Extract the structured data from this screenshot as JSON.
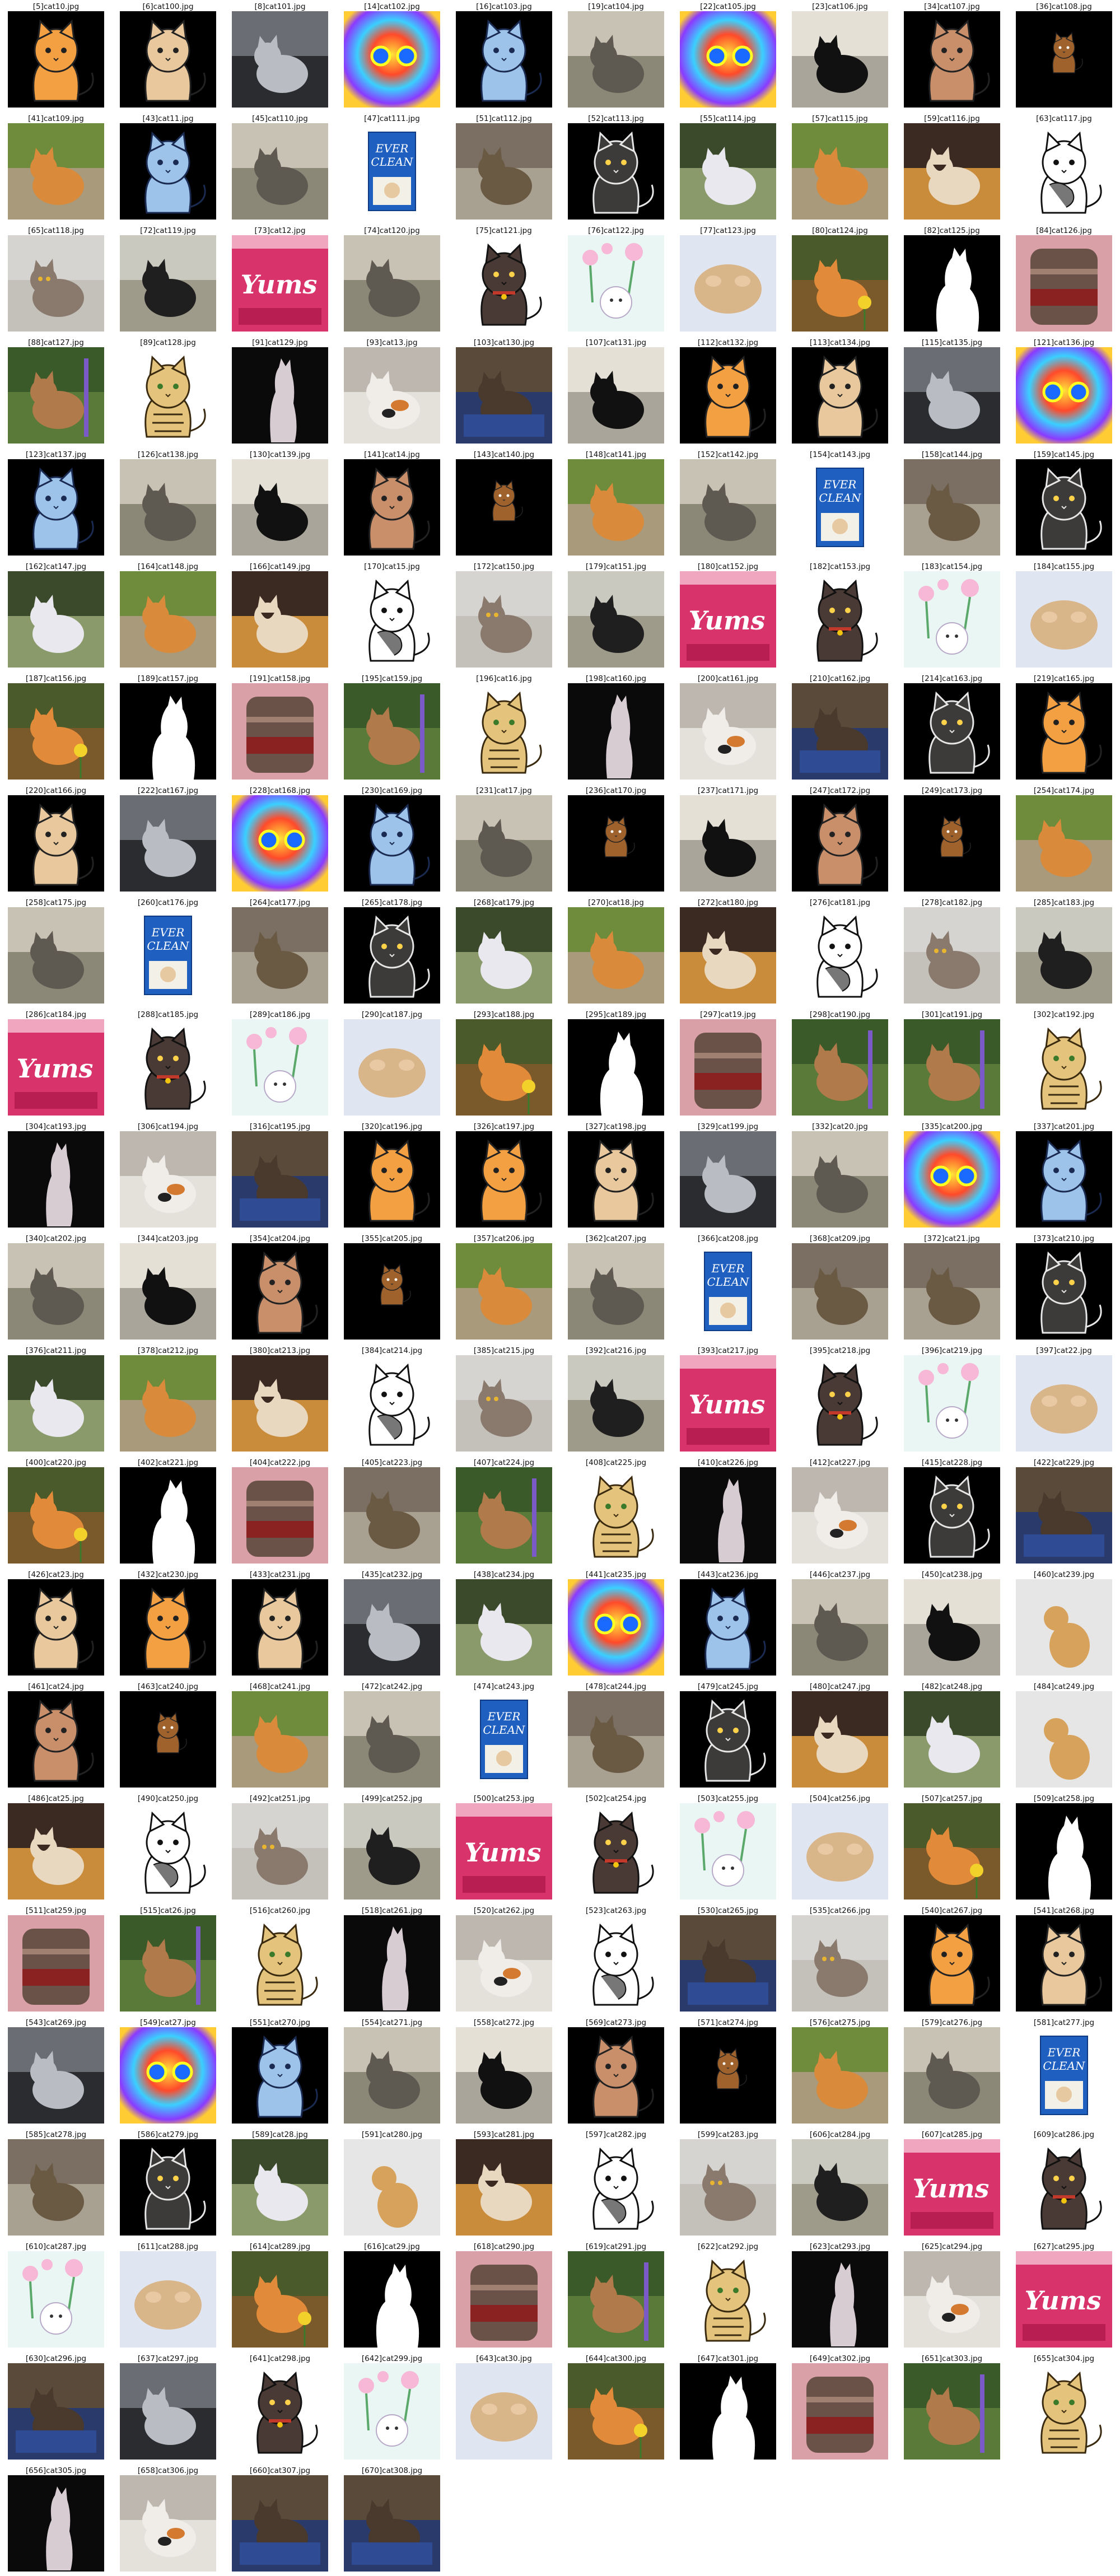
{
  "items": [
    {
      "label": "[5]cat10.jpg",
      "kind": "cart-orange"
    },
    {
      "label": "[6]cat100.jpg",
      "kind": "cart-tan"
    },
    {
      "label": "[8]cat101.jpg",
      "kind": "photo-grey"
    },
    {
      "label": "[14]cat102.jpg",
      "kind": "rainbow"
    },
    {
      "label": "[16]cat103.jpg",
      "kind": "cart-blue"
    },
    {
      "label": "[19]cat104.jpg",
      "kind": "photo-concrete"
    },
    {
      "label": "[22]cat105.jpg",
      "kind": "rainbow"
    },
    {
      "label": "[23]cat106.jpg",
      "kind": "photo-black"
    },
    {
      "label": "[34]cat107.jpg",
      "kind": "cart-brown"
    },
    {
      "label": "[36]cat108.jpg",
      "kind": "cart-small"
    },
    {
      "label": "[41]cat109.jpg",
      "kind": "photo-orange"
    },
    {
      "label": "[43]cat11.jpg",
      "kind": "cart-blue"
    },
    {
      "label": "[45]cat110.jpg",
      "kind": "photo-concrete"
    },
    {
      "label": "[47]cat111.jpg",
      "kind": "box"
    },
    {
      "label": "[51]cat112.jpg",
      "kind": "photo-tabby"
    },
    {
      "label": "[52]cat113.jpg",
      "kind": "cart-dark"
    },
    {
      "label": "[55]cat114.jpg",
      "kind": "photo-white"
    },
    {
      "label": "[57]cat115.jpg",
      "kind": "photo-orange"
    },
    {
      "label": "[59]cat116.jpg",
      "kind": "photo-siamese"
    },
    {
      "label": "[63]cat117.jpg",
      "kind": "sketch"
    },
    {
      "label": "[65]cat118.jpg",
      "kind": "photo-face"
    },
    {
      "label": "[72]cat119.jpg",
      "kind": "photo-outdoor"
    },
    {
      "label": "[73]cat12.jpg",
      "kind": "yums"
    },
    {
      "label": "[74]cat120.jpg",
      "kind": "photo-concrete"
    },
    {
      "label": "[75]cat121.jpg",
      "kind": "cart-dark-collar"
    },
    {
      "label": "[76]cat122.jpg",
      "kind": "floral"
    },
    {
      "label": "[77]cat123.jpg",
      "kind": "photo-paw"
    },
    {
      "label": "[80]cat124.jpg",
      "kind": "photo-flower"
    },
    {
      "label": "[82]cat125.jpg",
      "kind": "silhouette"
    },
    {
      "label": "[84]cat126.jpg",
      "kind": "photo-jar"
    },
    {
      "label": "[88]cat127.jpg",
      "kind": "photo-garden"
    },
    {
      "label": "[89]cat128.jpg",
      "kind": "cart-tiger"
    },
    {
      "label": "[91]cat129.jpg",
      "kind": "photo-standing"
    },
    {
      "label": "[93]cat13.jpg",
      "kind": "photo-calico"
    },
    {
      "label": "[103]cat130.jpg",
      "kind": "photo-box"
    },
    {
      "label": "[107]cat131.jpg",
      "kind": "photo-black"
    },
    {
      "label": "[112]cat132.jpg",
      "kind": "cart-orange"
    },
    {
      "label": "[113]cat134.jpg",
      "kind": "cart-tan"
    },
    {
      "label": "[115]cat135.jpg",
      "kind": "photo-grey"
    },
    {
      "label": "[121]cat136.jpg",
      "kind": "rainbow"
    },
    {
      "label": "[123]cat137.jpg",
      "kind": "cart-blue"
    },
    {
      "label": "[126]cat138.jpg",
      "kind": "photo-concrete"
    },
    {
      "label": "[130]cat139.jpg",
      "kind": "photo-black"
    },
    {
      "label": "[141]cat14.jpg",
      "kind": "cart-brown"
    },
    {
      "label": "[143]cat140.jpg",
      "kind": "cart-small"
    },
    {
      "label": "[148]cat141.jpg",
      "kind": "photo-orange"
    },
    {
      "label": "[152]cat142.jpg",
      "kind": "photo-concrete"
    },
    {
      "label": "[154]cat143.jpg",
      "kind": "box"
    },
    {
      "label": "[158]cat144.jpg",
      "kind": "photo-tabby"
    },
    {
      "label": "[159]cat145.jpg",
      "kind": "cart-dark"
    },
    {
      "label": "[162]cat147.jpg",
      "kind": "photo-white"
    },
    {
      "label": "[164]cat148.jpg",
      "kind": "photo-orange"
    },
    {
      "label": "[166]cat149.jpg",
      "kind": "photo-siamese"
    },
    {
      "label": "[170]cat15.jpg",
      "kind": "sketch"
    },
    {
      "label": "[172]cat150.jpg",
      "kind": "photo-face"
    },
    {
      "label": "[179]cat151.jpg",
      "kind": "photo-outdoor"
    },
    {
      "label": "[180]cat152.jpg",
      "kind": "yums"
    },
    {
      "label": "[182]cat153.jpg",
      "kind": "cart-dark-collar"
    },
    {
      "label": "[183]cat154.jpg",
      "kind": "floral"
    },
    {
      "label": "[184]cat155.jpg",
      "kind": "photo-paw"
    },
    {
      "label": "[187]cat156.jpg",
      "kind": "photo-flower"
    },
    {
      "label": "[189]cat157.jpg",
      "kind": "silhouette"
    },
    {
      "label": "[191]cat158.jpg",
      "kind": "photo-jar"
    },
    {
      "label": "[195]cat159.jpg",
      "kind": "photo-garden"
    },
    {
      "label": "[196]cat16.jpg",
      "kind": "cart-tiger"
    },
    {
      "label": "[198]cat160.jpg",
      "kind": "photo-standing"
    },
    {
      "label": "[200]cat161.jpg",
      "kind": "photo-calico"
    },
    {
      "label": "[210]cat162.jpg",
      "kind": "photo-box"
    },
    {
      "label": "[214]cat163.jpg",
      "kind": "cart-dark"
    },
    {
      "label": "[219]cat165.jpg",
      "kind": "cart-orange"
    },
    {
      "label": "[220]cat166.jpg",
      "kind": "cart-tan"
    },
    {
      "label": "[222]cat167.jpg",
      "kind": "photo-grey"
    },
    {
      "label": "[228]cat168.jpg",
      "kind": "rainbow"
    },
    {
      "label": "[230]cat169.jpg",
      "kind": "cart-blue"
    },
    {
      "label": "[231]cat17.jpg",
      "kind": "photo-concrete"
    },
    {
      "label": "[236]cat170.jpg",
      "kind": "cart-small"
    },
    {
      "label": "[237]cat171.jpg",
      "kind": "photo-black"
    },
    {
      "label": "[247]cat172.jpg",
      "kind": "cart-brown"
    },
    {
      "label": "[249]cat173.jpg",
      "kind": "cart-small"
    },
    {
      "label": "[254]cat174.jpg",
      "kind": "photo-orange"
    },
    {
      "label": "[258]cat175.jpg",
      "kind": "photo-concrete"
    },
    {
      "label": "[260]cat176.jpg",
      "kind": "box"
    },
    {
      "label": "[264]cat177.jpg",
      "kind": "photo-tabby"
    },
    {
      "label": "[265]cat178.jpg",
      "kind": "cart-dark"
    },
    {
      "label": "[268]cat179.jpg",
      "kind": "photo-white"
    },
    {
      "label": "[270]cat18.jpg",
      "kind": "photo-orange"
    },
    {
      "label": "[272]cat180.jpg",
      "kind": "photo-siamese"
    },
    {
      "label": "[276]cat181.jpg",
      "kind": "sketch"
    },
    {
      "label": "[278]cat182.jpg",
      "kind": "photo-face"
    },
    {
      "label": "[285]cat183.jpg",
      "kind": "photo-outdoor"
    },
    {
      "label": "[286]cat184.jpg",
      "kind": "yums"
    },
    {
      "label": "[288]cat185.jpg",
      "kind": "cart-dark-collar"
    },
    {
      "label": "[289]cat186.jpg",
      "kind": "floral"
    },
    {
      "label": "[290]cat187.jpg",
      "kind": "photo-paw"
    },
    {
      "label": "[293]cat188.jpg",
      "kind": "photo-flower"
    },
    {
      "label": "[295]cat189.jpg",
      "kind": "silhouette"
    },
    {
      "label": "[297]cat19.jpg",
      "kind": "photo-jar"
    },
    {
      "label": "[298]cat190.jpg",
      "kind": "photo-garden"
    },
    {
      "label": "[301]cat191.jpg",
      "kind": "photo-garden"
    },
    {
      "label": "[302]cat192.jpg",
      "kind": "cart-tiger"
    },
    {
      "label": "[304]cat193.jpg",
      "kind": "photo-standing"
    },
    {
      "label": "[306]cat194.jpg",
      "kind": "photo-calico"
    },
    {
      "label": "[316]cat195.jpg",
      "kind": "photo-box"
    },
    {
      "label": "[320]cat196.jpg",
      "kind": "cart-orange"
    },
    {
      "label": "[326]cat197.jpg",
      "kind": "cart-orange"
    },
    {
      "label": "[327]cat198.jpg",
      "kind": "cart-tan"
    },
    {
      "label": "[329]cat199.jpg",
      "kind": "photo-grey"
    },
    {
      "label": "[332]cat20.jpg",
      "kind": "photo-concrete"
    },
    {
      "label": "[335]cat200.jpg",
      "kind": "rainbow"
    },
    {
      "label": "[337]cat201.jpg",
      "kind": "cart-blue"
    },
    {
      "label": "[340]cat202.jpg",
      "kind": "photo-concrete"
    },
    {
      "label": "[344]cat203.jpg",
      "kind": "photo-black"
    },
    {
      "label": "[354]cat204.jpg",
      "kind": "cart-brown"
    },
    {
      "label": "[355]cat205.jpg",
      "kind": "cart-small"
    },
    {
      "label": "[357]cat206.jpg",
      "kind": "photo-orange"
    },
    {
      "label": "[362]cat207.jpg",
      "kind": "photo-concrete"
    },
    {
      "label": "[366]cat208.jpg",
      "kind": "box"
    },
    {
      "label": "[368]cat209.jpg",
      "kind": "photo-tabby"
    },
    {
      "label": "[372]cat21.jpg",
      "kind": "photo-tabby"
    },
    {
      "label": "[373]cat210.jpg",
      "kind": "cart-dark"
    },
    {
      "label": "[376]cat211.jpg",
      "kind": "photo-white"
    },
    {
      "label": "[378]cat212.jpg",
      "kind": "photo-orange"
    },
    {
      "label": "[380]cat213.jpg",
      "kind": "photo-siamese"
    },
    {
      "label": "[384]cat214.jpg",
      "kind": "sketch"
    },
    {
      "label": "[385]cat215.jpg",
      "kind": "photo-face"
    },
    {
      "label": "[392]cat216.jpg",
      "kind": "photo-outdoor"
    },
    {
      "label": "[393]cat217.jpg",
      "kind": "yums"
    },
    {
      "label": "[395]cat218.jpg",
      "kind": "cart-dark-collar"
    },
    {
      "label": "[396]cat219.jpg",
      "kind": "floral"
    },
    {
      "label": "[397]cat22.jpg",
      "kind": "photo-paw"
    },
    {
      "label": "[400]cat220.jpg",
      "kind": "photo-flower"
    },
    {
      "label": "[402]cat221.jpg",
      "kind": "silhouette"
    },
    {
      "label": "[404]cat222.jpg",
      "kind": "photo-jar"
    },
    {
      "label": "[405]cat223.jpg",
      "kind": "photo-tabby"
    },
    {
      "label": "[407]cat224.jpg",
      "kind": "photo-garden"
    },
    {
      "label": "[408]cat225.jpg",
      "kind": "cart-tiger"
    },
    {
      "label": "[410]cat226.jpg",
      "kind": "photo-standing"
    },
    {
      "label": "[412]cat227.jpg",
      "kind": "photo-calico"
    },
    {
      "label": "[415]cat228.jpg",
      "kind": "cart-dark"
    },
    {
      "label": "[422]cat229.jpg",
      "kind": "photo-box"
    },
    {
      "label": "[426]cat23.jpg",
      "kind": "cart-tan"
    },
    {
      "label": "[432]cat230.jpg",
      "kind": "cart-orange"
    },
    {
      "label": "[433]cat231.jpg",
      "kind": "cart-tan"
    },
    {
      "label": "[435]cat232.jpg",
      "kind": "photo-grey"
    },
    {
      "label": "[438]cat234.jpg",
      "kind": "photo-white"
    },
    {
      "label": "[441]cat235.jpg",
      "kind": "rainbow"
    },
    {
      "label": "[443]cat236.jpg",
      "kind": "cart-blue"
    },
    {
      "label": "[446]cat237.jpg",
      "kind": "photo-concrete"
    },
    {
      "label": "[450]cat238.jpg",
      "kind": "photo-black"
    },
    {
      "label": "[460]cat239.jpg",
      "kind": "photo-lion"
    },
    {
      "label": "[461]cat24.jpg",
      "kind": "cart-brown"
    },
    {
      "label": "[463]cat240.jpg",
      "kind": "cart-small"
    },
    {
      "label": "[468]cat241.jpg",
      "kind": "photo-orange"
    },
    {
      "label": "[472]cat242.jpg",
      "kind": "photo-concrete"
    },
    {
      "label": "[474]cat243.jpg",
      "kind": "box"
    },
    {
      "label": "[478]cat244.jpg",
      "kind": "photo-tabby"
    },
    {
      "label": "[479]cat245.jpg",
      "kind": "cart-dark"
    },
    {
      "label": "[480]cat247.jpg",
      "kind": "photo-siamese"
    },
    {
      "label": "[482]cat248.jpg",
      "kind": "photo-white"
    },
    {
      "label": "[484]cat249.jpg",
      "kind": "photo-lion"
    },
    {
      "label": "[486]cat25.jpg",
      "kind": "photo-siamese"
    },
    {
      "label": "[490]cat250.jpg",
      "kind": "sketch"
    },
    {
      "label": "[492]cat251.jpg",
      "kind": "photo-face"
    },
    {
      "label": "[499]cat252.jpg",
      "kind": "photo-outdoor"
    },
    {
      "label": "[500]cat253.jpg",
      "kind": "yums"
    },
    {
      "label": "[502]cat254.jpg",
      "kind": "cart-dark-collar"
    },
    {
      "label": "[503]cat255.jpg",
      "kind": "floral"
    },
    {
      "label": "[504]cat256.jpg",
      "kind": "photo-paw"
    },
    {
      "label": "[507]cat257.jpg",
      "kind": "photo-flower"
    },
    {
      "label": "[509]cat258.jpg",
      "kind": "silhouette"
    },
    {
      "label": "[511]cat259.jpg",
      "kind": "photo-jar"
    },
    {
      "label": "[515]cat26.jpg",
      "kind": "photo-garden"
    },
    {
      "label": "[516]cat260.jpg",
      "kind": "cart-tiger"
    },
    {
      "label": "[518]cat261.jpg",
      "kind": "photo-standing"
    },
    {
      "label": "[520]cat262.jpg",
      "kind": "photo-calico"
    },
    {
      "label": "[523]cat263.jpg",
      "kind": "sketch"
    },
    {
      "label": "[530]cat265.jpg",
      "kind": "photo-box"
    },
    {
      "label": "[535]cat266.jpg",
      "kind": "photo-face"
    },
    {
      "label": "[540]cat267.jpg",
      "kind": "cart-orange"
    },
    {
      "label": "[541]cat268.jpg",
      "kind": "cart-tan"
    },
    {
      "label": "[543]cat269.jpg",
      "kind": "photo-grey"
    },
    {
      "label": "[549]cat27.jpg",
      "kind": "rainbow"
    },
    {
      "label": "[551]cat270.jpg",
      "kind": "cart-blue"
    },
    {
      "label": "[554]cat271.jpg",
      "kind": "photo-concrete"
    },
    {
      "label": "[558]cat272.jpg",
      "kind": "photo-black"
    },
    {
      "label": "[569]cat273.jpg",
      "kind": "cart-brown"
    },
    {
      "label": "[571]cat274.jpg",
      "kind": "cart-small"
    },
    {
      "label": "[576]cat275.jpg",
      "kind": "photo-orange"
    },
    {
      "label": "[579]cat276.jpg",
      "kind": "photo-concrete"
    },
    {
      "label": "[581]cat277.jpg",
      "kind": "box"
    },
    {
      "label": "[585]cat278.jpg",
      "kind": "photo-tabby"
    },
    {
      "label": "[586]cat279.jpg",
      "kind": "cart-dark"
    },
    {
      "label": "[589]cat28.jpg",
      "kind": "photo-white"
    },
    {
      "label": "[591]cat280.jpg",
      "kind": "photo-lion"
    },
    {
      "label": "[593]cat281.jpg",
      "kind": "photo-siamese"
    },
    {
      "label": "[597]cat282.jpg",
      "kind": "sketch"
    },
    {
      "label": "[599]cat283.jpg",
      "kind": "photo-face"
    },
    {
      "label": "[606]cat284.jpg",
      "kind": "photo-outdoor"
    },
    {
      "label": "[607]cat285.jpg",
      "kind": "yums"
    },
    {
      "label": "[609]cat286.jpg",
      "kind": "cart-dark-collar"
    },
    {
      "label": "[610]cat287.jpg",
      "kind": "floral"
    },
    {
      "label": "[611]cat288.jpg",
      "kind": "photo-paw"
    },
    {
      "label": "[614]cat289.jpg",
      "kind": "photo-flower"
    },
    {
      "label": "[616]cat29.jpg",
      "kind": "silhouette"
    },
    {
      "label": "[618]cat290.jpg",
      "kind": "photo-jar"
    },
    {
      "label": "[619]cat291.jpg",
      "kind": "photo-garden"
    },
    {
      "label": "[622]cat292.jpg",
      "kind": "cart-tiger"
    },
    {
      "label": "[623]cat293.jpg",
      "kind": "photo-standing"
    },
    {
      "label": "[625]cat294.jpg",
      "kind": "photo-calico"
    },
    {
      "label": "[627]cat295.jpg",
      "kind": "yums"
    },
    {
      "label": "[630]cat296.jpg",
      "kind": "photo-box"
    },
    {
      "label": "[637]cat297.jpg",
      "kind": "photo-grey"
    },
    {
      "label": "[641]cat298.jpg",
      "kind": "cart-dark-collar"
    },
    {
      "label": "[642]cat299.jpg",
      "kind": "floral"
    },
    {
      "label": "[643]cat30.jpg",
      "kind": "photo-paw"
    },
    {
      "label": "[644]cat300.jpg",
      "kind": "photo-flower"
    },
    {
      "label": "[647]cat301.jpg",
      "kind": "silhouette"
    },
    {
      "label": "[649]cat302.jpg",
      "kind": "photo-jar"
    },
    {
      "label": "[651]cat303.jpg",
      "kind": "photo-garden"
    },
    {
      "label": "[655]cat304.jpg",
      "kind": "cart-tiger"
    },
    {
      "label": "[656]cat305.jpg",
      "kind": "photo-standing"
    },
    {
      "label": "[658]cat306.jpg",
      "kind": "photo-calico"
    },
    {
      "label": "[660]cat307.jpg",
      "kind": "photo-box"
    },
    {
      "label": "[670]cat308.jpg",
      "kind": "photo-box"
    }
  ],
  "art": {
    "box_brand": "EVER",
    "box_brand2": "CLEAN",
    "yums_text": "Yums"
  }
}
